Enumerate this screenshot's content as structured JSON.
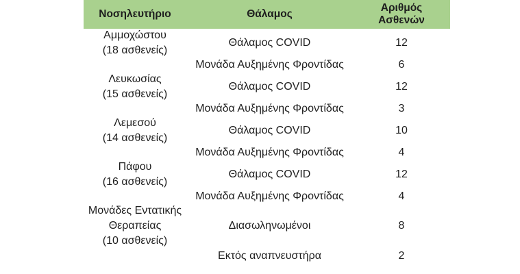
{
  "table": {
    "headers": [
      "Νοσηλευτήριο",
      "Θάλαμος",
      "Αριθμός Ασθενών"
    ],
    "hospitals": [
      {
        "name": "Αμμοχώστου",
        "patients": "(18 ασθενείς)",
        "rows": [
          {
            "ward": "Θάλαμος COVID",
            "count": "12"
          },
          {
            "ward": "Μονάδα Αυξημένης Φροντίδας",
            "count": "6"
          }
        ]
      },
      {
        "name": "Λευκωσίας",
        "patients": "(15 ασθενείς)",
        "rows": [
          {
            "ward": "Θάλαμος COVID",
            "count": "12"
          },
          {
            "ward": "Μονάδα Αυξημένης Φροντίδας",
            "count": "3"
          }
        ]
      },
      {
        "name": "Λεμεσού",
        "patients": "(14 ασθενείς)",
        "rows": [
          {
            "ward": "Θάλαμος COVID",
            "count": "10"
          },
          {
            "ward": "Μονάδα Αυξημένης Φροντίδας",
            "count": "4"
          }
        ]
      },
      {
        "name": "Πάφου",
        "patients": "(16 ασθενείς)",
        "rows": [
          {
            "ward": "Θάλαμος COVID",
            "count": "12"
          },
          {
            "ward": "Μονάδα Αυξημένης Φροντίδας",
            "count": "4"
          }
        ]
      },
      {
        "name": "Μονάδες Εντατικής Θεραπείας",
        "patients": "(10 ασθενείς)",
        "rows": [
          {
            "ward": "Διασωληνωμένοι",
            "count": "8"
          },
          {
            "ward": "Εκτός αναπνευστήρα",
            "count": "2"
          }
        ]
      }
    ],
    "header_color": "#a9d18e"
  }
}
